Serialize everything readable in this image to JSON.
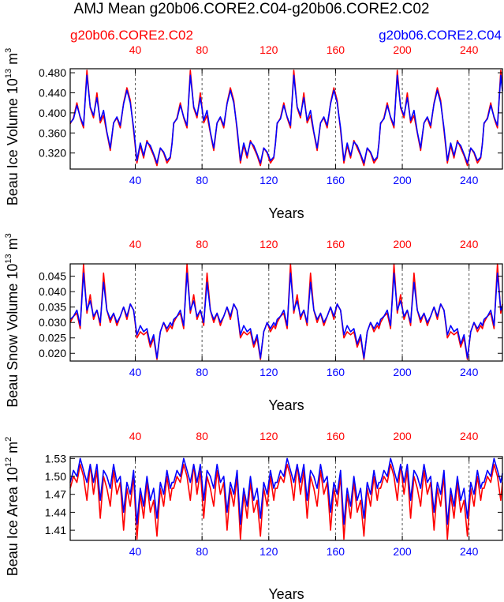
{
  "title": "AMJ Mean g20b06.CORE2.C04-g20b06.CORE2.C02",
  "legend": {
    "left": {
      "label": "g20b06.CORE2.C02",
      "color": "#ff0000"
    },
    "right": {
      "label": "g20b06.CORE2.C04",
      "color": "#0000ff"
    }
  },
  "chart_data": [
    {
      "type": "line",
      "name": "ice-volume",
      "xlabel": "Years",
      "ylabel": "Beau Ice Volume 10",
      "ylabel_exp": "13",
      "ylabel_unit": " m",
      "ylabel_unit_exp": "3",
      "xlim": [
        1,
        260
      ],
      "ylim": [
        0.288,
        0.488
      ],
      "yticks": [
        0.32,
        0.36,
        0.4,
        0.44,
        0.48
      ],
      "ytick_labels": [
        "0.320",
        "0.360",
        "0.400",
        "0.440",
        "0.480"
      ],
      "xticks": [
        40,
        80,
        120,
        160,
        200,
        240
      ],
      "xtick_labels": [
        "40",
        "80",
        "120",
        "160",
        "200",
        "240"
      ],
      "top_xtick_labels": [
        "40",
        "80",
        "120",
        "160",
        "200",
        "240"
      ],
      "cycle_length": 62,
      "series": [
        {
          "name": "g20b06.CORE2.C02",
          "color": "#ff0000",
          "keypoints": [
            [
              0,
              0.378
            ],
            [
              2,
              0.39
            ],
            [
              4,
              0.42
            ],
            [
              6,
              0.39
            ],
            [
              8,
              0.37
            ],
            [
              10,
              0.485
            ],
            [
              12,
              0.41
            ],
            [
              14,
              0.39
            ],
            [
              16,
              0.44
            ],
            [
              18,
              0.38
            ],
            [
              20,
              0.395
            ],
            [
              22,
              0.36
            ],
            [
              24,
              0.325
            ],
            [
              26,
              0.38
            ],
            [
              28,
              0.39
            ],
            [
              30,
              0.37
            ],
            [
              32,
              0.42
            ],
            [
              34,
              0.45
            ],
            [
              36,
              0.425
            ],
            [
              38,
              0.365
            ],
            [
              40,
              0.3
            ],
            [
              42,
              0.335
            ],
            [
              44,
              0.31
            ],
            [
              46,
              0.345
            ],
            [
              48,
              0.33
            ],
            [
              50,
              0.315
            ],
            [
              52,
              0.295
            ],
            [
              54,
              0.33
            ],
            [
              56,
              0.32
            ],
            [
              58,
              0.3
            ],
            [
              60,
              0.31
            ],
            [
              61,
              0.34
            ]
          ]
        },
        {
          "name": "g20b06.CORE2.C04",
          "color": "#0000ff",
          "keypoints": [
            [
              0,
              0.38
            ],
            [
              2,
              0.388
            ],
            [
              4,
              0.415
            ],
            [
              6,
              0.392
            ],
            [
              8,
              0.375
            ],
            [
              10,
              0.475
            ],
            [
              12,
              0.412
            ],
            [
              14,
              0.395
            ],
            [
              16,
              0.43
            ],
            [
              18,
              0.385
            ],
            [
              20,
              0.405
            ],
            [
              22,
              0.362
            ],
            [
              24,
              0.33
            ],
            [
              26,
              0.38
            ],
            [
              28,
              0.392
            ],
            [
              30,
              0.375
            ],
            [
              32,
              0.418
            ],
            [
              34,
              0.445
            ],
            [
              36,
              0.42
            ],
            [
              38,
              0.37
            ],
            [
              40,
              0.305
            ],
            [
              42,
              0.34
            ],
            [
              44,
              0.315
            ],
            [
              46,
              0.342
            ],
            [
              48,
              0.335
            ],
            [
              50,
              0.318
            ],
            [
              52,
              0.3
            ],
            [
              54,
              0.33
            ],
            [
              56,
              0.322
            ],
            [
              58,
              0.305
            ],
            [
              60,
              0.312
            ],
            [
              61,
              0.338
            ]
          ]
        }
      ]
    },
    {
      "type": "line",
      "name": "snow-volume",
      "xlabel": "Years",
      "ylabel": "Beau Snow Volume 10",
      "ylabel_exp": "13",
      "ylabel_unit": " m",
      "ylabel_unit_exp": "3",
      "xlim": [
        1,
        260
      ],
      "ylim": [
        0.0175,
        0.049
      ],
      "yticks": [
        0.02,
        0.025,
        0.03,
        0.035,
        0.04,
        0.045
      ],
      "ytick_labels": [
        "0.020",
        "0.025",
        "0.030",
        "0.035",
        "0.040",
        "0.045"
      ],
      "xticks": [
        40,
        80,
        120,
        160,
        200,
        240
      ],
      "xtick_labels": [
        "40",
        "80",
        "120",
        "160",
        "200",
        "240"
      ],
      "top_xtick_labels": [
        "40",
        "80",
        "120",
        "160",
        "200",
        "240"
      ],
      "cycle_length": 62,
      "series": [
        {
          "name": "g20b06.CORE2.C02",
          "color": "#ff0000",
          "keypoints": [
            [
              0,
              0.03
            ],
            [
              2,
              0.032
            ],
            [
              4,
              0.033
            ],
            [
              6,
              0.028
            ],
            [
              8,
              0.049
            ],
            [
              10,
              0.033
            ],
            [
              12,
              0.039
            ],
            [
              14,
              0.031
            ],
            [
              16,
              0.034
            ],
            [
              18,
              0.029
            ],
            [
              20,
              0.046
            ],
            [
              22,
              0.034
            ],
            [
              24,
              0.03
            ],
            [
              26,
              0.033
            ],
            [
              28,
              0.029
            ],
            [
              30,
              0.032
            ],
            [
              32,
              0.035
            ],
            [
              34,
              0.031
            ],
            [
              36,
              0.036
            ],
            [
              38,
              0.034
            ],
            [
              40,
              0.025
            ],
            [
              42,
              0.027
            ],
            [
              44,
              0.026
            ],
            [
              46,
              0.027
            ],
            [
              48,
              0.022
            ],
            [
              50,
              0.025
            ],
            [
              52,
              0.018
            ],
            [
              54,
              0.027
            ],
            [
              56,
              0.03
            ],
            [
              58,
              0.027
            ],
            [
              60,
              0.029
            ],
            [
              61,
              0.028
            ]
          ]
        },
        {
          "name": "g20b06.CORE2.C04",
          "color": "#0000ff",
          "keypoints": [
            [
              0,
              0.031
            ],
            [
              2,
              0.032
            ],
            [
              4,
              0.034
            ],
            [
              6,
              0.029
            ],
            [
              8,
              0.046
            ],
            [
              10,
              0.034
            ],
            [
              12,
              0.037
            ],
            [
              14,
              0.032
            ],
            [
              16,
              0.034
            ],
            [
              18,
              0.03
            ],
            [
              20,
              0.043
            ],
            [
              22,
              0.034
            ],
            [
              24,
              0.031
            ],
            [
              26,
              0.033
            ],
            [
              28,
              0.03
            ],
            [
              30,
              0.032
            ],
            [
              32,
              0.035
            ],
            [
              34,
              0.032
            ],
            [
              36,
              0.036
            ],
            [
              38,
              0.034
            ],
            [
              40,
              0.026
            ],
            [
              42,
              0.029
            ],
            [
              44,
              0.027
            ],
            [
              46,
              0.028
            ],
            [
              48,
              0.023
            ],
            [
              50,
              0.026
            ],
            [
              52,
              0.0185
            ],
            [
              54,
              0.027
            ],
            [
              56,
              0.03
            ],
            [
              58,
              0.028
            ],
            [
              60,
              0.03
            ],
            [
              61,
              0.029
            ]
          ]
        }
      ]
    },
    {
      "type": "line",
      "name": "ice-area",
      "xlabel": "Years",
      "ylabel": "Beau Ice Area 10",
      "ylabel_exp": "12",
      "ylabel_unit": " m",
      "ylabel_unit_exp": "2",
      "xlim": [
        1,
        260
      ],
      "ylim": [
        1.393,
        1.533
      ],
      "yticks": [
        1.41,
        1.44,
        1.47,
        1.5,
        1.53
      ],
      "ytick_labels": [
        "1.41",
        "1.44",
        "1.47",
        "1.50",
        "1.53"
      ],
      "xticks": [
        40,
        80,
        120,
        160,
        200,
        240
      ],
      "xtick_labels": [
        "40",
        "80",
        "120",
        "160",
        "200",
        "240"
      ],
      "top_xtick_labels": [
        "40",
        "80",
        "120",
        "160",
        "200",
        "240"
      ],
      "cycle_length": 62,
      "series": [
        {
          "name": "g20b06.CORE2.C02",
          "color": "#ff0000",
          "keypoints": [
            [
              0,
              1.48
            ],
            [
              2,
              1.5
            ],
            [
              4,
              1.49
            ],
            [
              6,
              1.52
            ],
            [
              8,
              1.5
            ],
            [
              10,
              1.46
            ],
            [
              12,
              1.52
            ],
            [
              14,
              1.47
            ],
            [
              16,
              1.51
            ],
            [
              18,
              1.43
            ],
            [
              20,
              1.5
            ],
            [
              22,
              1.48
            ],
            [
              24,
              1.45
            ],
            [
              26,
              1.51
            ],
            [
              28,
              1.47
            ],
            [
              30,
              1.49
            ],
            [
              32,
              1.41
            ],
            [
              34,
              1.48
            ],
            [
              36,
              1.45
            ],
            [
              38,
              1.5
            ],
            [
              40,
              1.395
            ],
            [
              42,
              1.47
            ],
            [
              44,
              1.43
            ],
            [
              46,
              1.49
            ],
            [
              48,
              1.44
            ],
            [
              50,
              1.46
            ],
            [
              52,
              1.4
            ],
            [
              54,
              1.48
            ],
            [
              56,
              1.45
            ],
            [
              58,
              1.5
            ],
            [
              60,
              1.46
            ],
            [
              61,
              1.48
            ]
          ]
        },
        {
          "name": "g20b06.CORE2.C04",
          "color": "#0000ff",
          "keypoints": [
            [
              0,
              1.49
            ],
            [
              2,
              1.51
            ],
            [
              4,
              1.5
            ],
            [
              6,
              1.53
            ],
            [
              8,
              1.51
            ],
            [
              10,
              1.49
            ],
            [
              12,
              1.52
            ],
            [
              14,
              1.49
            ],
            [
              16,
              1.52
            ],
            [
              18,
              1.46
            ],
            [
              20,
              1.51
            ],
            [
              22,
              1.5
            ],
            [
              24,
              1.48
            ],
            [
              26,
              1.52
            ],
            [
              28,
              1.49
            ],
            [
              30,
              1.5
            ],
            [
              32,
              1.44
            ],
            [
              34,
              1.49
            ],
            [
              36,
              1.47
            ],
            [
              38,
              1.51
            ],
            [
              40,
              1.42
            ],
            [
              42,
              1.48
            ],
            [
              44,
              1.45
            ],
            [
              46,
              1.5
            ],
            [
              48,
              1.46
            ],
            [
              50,
              1.48
            ],
            [
              52,
              1.43
            ],
            [
              54,
              1.49
            ],
            [
              56,
              1.47
            ],
            [
              58,
              1.51
            ],
            [
              60,
              1.48
            ],
            [
              61,
              1.49
            ]
          ]
        }
      ]
    }
  ]
}
